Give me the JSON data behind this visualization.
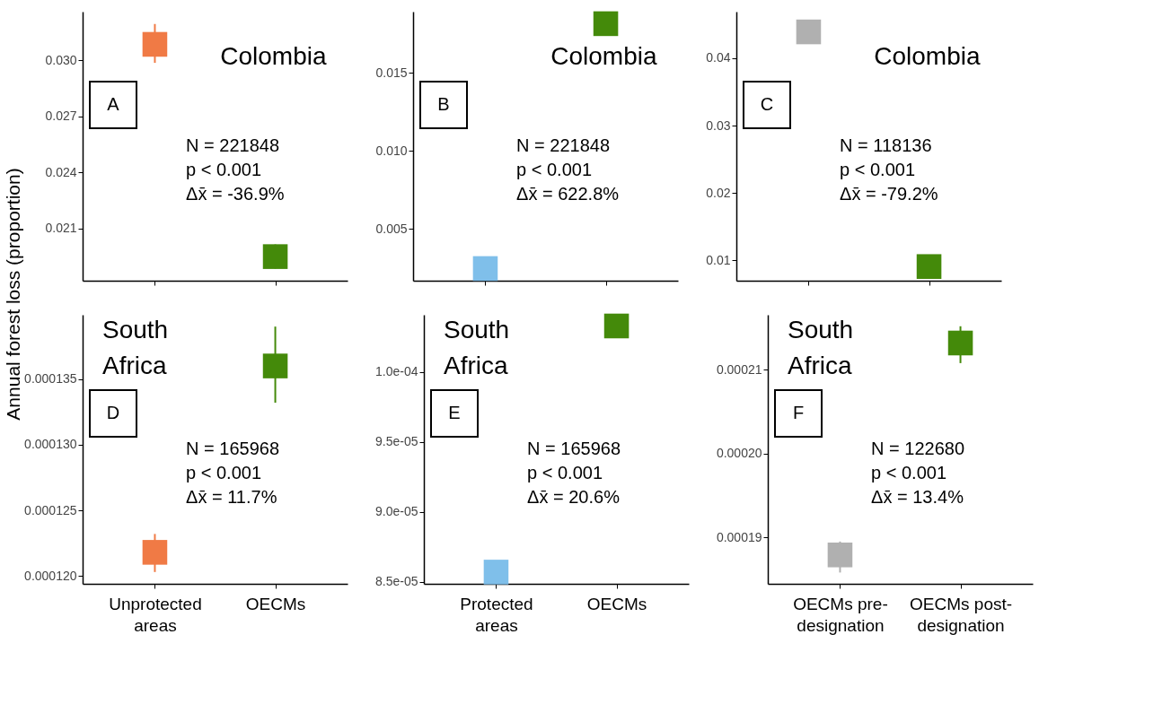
{
  "chart_data": [
    {
      "type": "scatter",
      "ylabel": "Annual forest loss (proportion)",
      "categories": [
        null,
        null
      ],
      "values": [
        0.03085,
        0.01949
      ],
      "colors": [
        "#f07a45",
        "#448a0a"
      ],
      "errors": [
        [
          0.02986,
          0.03194
        ],
        [
          0.01885,
          0.02014
        ]
      ],
      "ylim": [
        0.0182,
        0.0326
      ],
      "yticks": [
        {
          "value": 0.03,
          "label": "0.030"
        },
        0.027,
        0.024,
        0.021
      ],
      "marker": "square",
      "tick_labels": "y",
      "annotations": [
        "Colombia",
        "A",
        "N = 221848",
        "p < 0.001",
        "Δx̄ = -36.9%"
      ]
    },
    {
      "type": "scatter",
      "categories": [
        null,
        null
      ],
      "values": [
        0.00247,
        0.01816
      ],
      "colors": [
        "#7fbfea",
        "#448a0a"
      ],
      "ylim": [
        0.00169,
        0.01893
      ],
      "yticks": [
        0.015,
        {
          "value": 0.01,
          "label": "0.010"
        },
        0.005
      ],
      "marker": "square",
      "tick_labels": "y",
      "annotations": [
        "Colombia",
        "B",
        "N = 221848",
        "p < 0.001",
        "Δx̄ = 622.8%"
      ]
    },
    {
      "type": "scatter",
      "categories": [
        null,
        null
      ],
      "values": [
        0.0439,
        0.0091
      ],
      "colors": [
        "#b0b0b0",
        "#448a0a"
      ],
      "ylim": [
        0.007,
        0.0469
      ],
      "yticks": [
        0.04,
        0.03,
        0.02,
        0.01
      ],
      "marker": "square",
      "tick_labels": "y",
      "annotations": [
        "Colombia",
        "C",
        "N = 118136",
        "p < 0.001",
        "Δx̄ = -79.2%"
      ]
    },
    {
      "type": "scatter",
      "categories": [
        "Unprotected areas",
        "OECMs"
      ],
      "values": [
        0.0001218,
        0.000136
      ],
      "colors": [
        "#f07a45",
        "#448a0a"
      ],
      "errors": [
        [
          0.0001203,
          0.0001232
        ],
        [
          0.0001332,
          0.000139
        ]
      ],
      "ylim": [
        0.0001194,
        0.0001399
      ],
      "yticks": [
        0.000135,
        {
          "value": 0.00013,
          "label": "0.000130"
        },
        0.000125,
        {
          "value": 0.00012,
          "label": "0.000120"
        }
      ],
      "marker": "square",
      "annotations": [
        "South Africa",
        "D",
        "N = 165968",
        "p < 0.001",
        "Δx̄ = 11.7%"
      ]
    },
    {
      "type": "scatter",
      "categories": [
        "Protected areas",
        "OECMs"
      ],
      "values": [
        8.57e-05,
        0.0001033
      ],
      "colors": [
        "#7fbfea",
        "#448a0a"
      ],
      "ylim": [
        8.486e-05,
        0.0001041
      ],
      "yticks": [
        {
          "value": 0.0001,
          "label": "1.0e-04"
        },
        {
          "value": 9.5e-05,
          "label": "9.5e-05"
        },
        {
          "value": 9e-05,
          "label": "9.0e-05"
        },
        {
          "value": 8.5e-05,
          "label": "8.5e-05"
        }
      ],
      "marker": "square",
      "annotations": [
        "South Africa",
        "E",
        "N = 165968",
        "p < 0.001",
        "Δx̄ = 20.6%"
      ]
    },
    {
      "type": "scatter",
      "categories": [
        "OECMs pre-designation",
        "OECMs post-designation"
      ],
      "values": [
        0.0001879,
        0.0002132
      ],
      "colors": [
        "#b0b0b0",
        "#448a0a"
      ],
      "errors": [
        [
          0.0001858,
          0.0001895
        ],
        [
          0.0002108,
          0.0002152
        ]
      ],
      "ylim": [
        0.00018445,
        0.00021657
      ],
      "yticks": [
        0.00021,
        {
          "value": 0.0002,
          "label": "0.00020"
        },
        0.00019
      ],
      "marker": "square",
      "annotations": [
        "South Africa",
        "F",
        "N = 122680",
        "p < 0.001",
        "Δx̄ = 13.4%"
      ]
    }
  ]
}
